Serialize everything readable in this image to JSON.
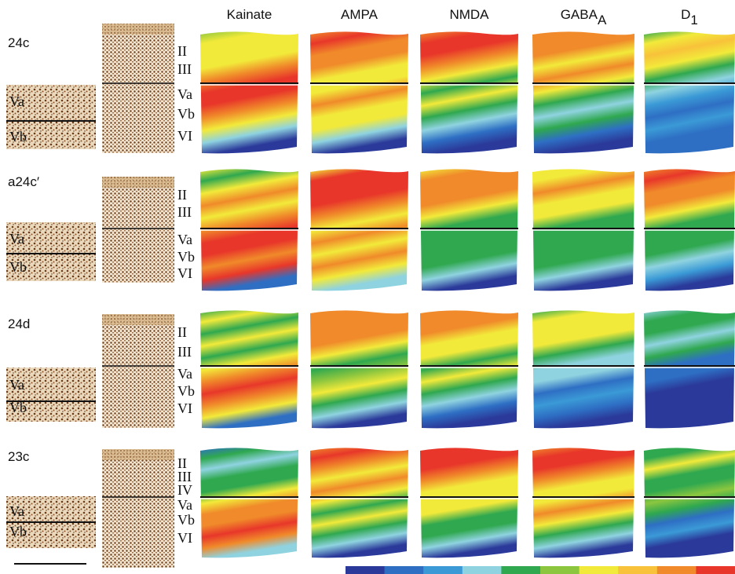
{
  "columns": [
    {
      "name": "Kainate"
    },
    {
      "name": "AMPA"
    },
    {
      "name": "NMDA"
    },
    {
      "name": "GABA",
      "sub": "A"
    },
    {
      "name": "D",
      "sub": "1"
    }
  ],
  "rows": [
    {
      "label": "24c",
      "layers": [
        "II",
        "III",
        "Va",
        "Vb",
        "VI"
      ],
      "inset": [
        "Va",
        "Vb"
      ]
    },
    {
      "label": "a24c′",
      "layers": [
        "II",
        "III",
        "Va",
        "Vb",
        "VI"
      ],
      "inset": [
        "Va",
        "Vb"
      ]
    },
    {
      "label": "24d",
      "layers": [
        "II",
        "III",
        "Va",
        "Vb",
        "VI"
      ],
      "inset": [
        "Va",
        "Vb"
      ]
    },
    {
      "label": "23c",
      "layers": [
        "II",
        "III",
        "IV",
        "Va",
        "Vb",
        "VI"
      ],
      "inset": [
        "Va",
        "Vb"
      ]
    }
  ]
}
